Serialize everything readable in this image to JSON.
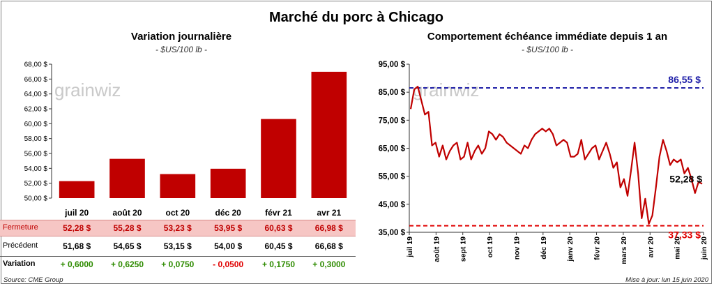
{
  "title": "Marché du porc à Chicago",
  "left_panel": {
    "title": "Variation  journalière",
    "subtitle": "- $US/100 lb -"
  },
  "right_panel": {
    "title": "Comportement  échéance immédiate depuis 1 an",
    "subtitle": "- $US/100 lb -"
  },
  "watermark": "grainwiz",
  "table": {
    "labels": {
      "close": "Fermeture",
      "previous": "Précédent",
      "change": "Variation"
    },
    "close": [
      "52,28  $",
      "55,28  $",
      "53,23  $",
      "53,95  $",
      "60,63  $",
      "66,98  $"
    ],
    "previous": [
      "51,68  $",
      "54,65  $",
      "53,15  $",
      "54,00  $",
      "60,45  $",
      "66,68  $"
    ],
    "change": [
      "+ 0,6000",
      "+ 0,6250",
      "+ 0,0750",
      "- 0,0500",
      "+ 0,1750",
      "+ 0,3000"
    ],
    "change_colors": [
      "#2e8b00",
      "#2e8b00",
      "#2e8b00",
      "#e00000",
      "#2e8b00",
      "#2e8b00"
    ]
  },
  "footer": {
    "source": "Source: CME Group",
    "updated": "Mise à jour: lun 15 juin 2020"
  },
  "colors": {
    "bar": "#c00000",
    "line": "#c00000",
    "high_line": "#1f1fa8",
    "low_line": "#e00000"
  },
  "chart_data": [
    {
      "type": "bar",
      "categories": [
        "juil 20",
        "août 20",
        "oct 20",
        "déc 20",
        "févr 21",
        "avr 21"
      ],
      "values": [
        52.28,
        55.28,
        53.23,
        53.95,
        60.63,
        66.98
      ],
      "ylim": [
        50,
        68
      ],
      "yticks": [
        "50,00 $",
        "52,00 $",
        "54,00 $",
        "56,00 $",
        "58,00 $",
        "60,00 $",
        "62,00 $",
        "64,00 $",
        "66,00 $",
        "68,00 $"
      ],
      "grid": false,
      "legend": "none"
    },
    {
      "type": "line",
      "x_labels": [
        "juil 19",
        "août 19",
        "sept 19",
        "oct 19",
        "nov 19",
        "déc 19",
        "janv 20",
        "févr 20",
        "mars 20",
        "avr 20",
        "mai 20",
        "juin 20"
      ],
      "ylim": [
        35,
        95
      ],
      "yticks": [
        "35,00 $",
        "45,00 $",
        "55,00 $",
        "65,00 $",
        "75,00 $",
        "85,00 $",
        "95,00 $"
      ],
      "series": [
        {
          "values": [
            79,
            86,
            87,
            82,
            77,
            78,
            66,
            67,
            62,
            66,
            61,
            64,
            66,
            67,
            61,
            62,
            67,
            61,
            64,
            66,
            63,
            65,
            71,
            70,
            68,
            70,
            69,
            67,
            66,
            65,
            64,
            63,
            66,
            65,
            68,
            70,
            71,
            72,
            71,
            72,
            70,
            66,
            67,
            68,
            67,
            62,
            62,
            63,
            68,
            61,
            63,
            65,
            66,
            61,
            64,
            67,
            63,
            58,
            60,
            51,
            54,
            48,
            57,
            67,
            56,
            40,
            47,
            38,
            41,
            51,
            62,
            68,
            64,
            59,
            61,
            60,
            61,
            56,
            58,
            54,
            49,
            53,
            52.28
          ]
        }
      ],
      "reference_lines": [
        {
          "value": 86.55,
          "label": "86,55 $"
        },
        {
          "value": 37.33,
          "label": "37,33 $"
        }
      ],
      "last_label": "52,28 $",
      "grid": false,
      "legend": "none"
    }
  ]
}
